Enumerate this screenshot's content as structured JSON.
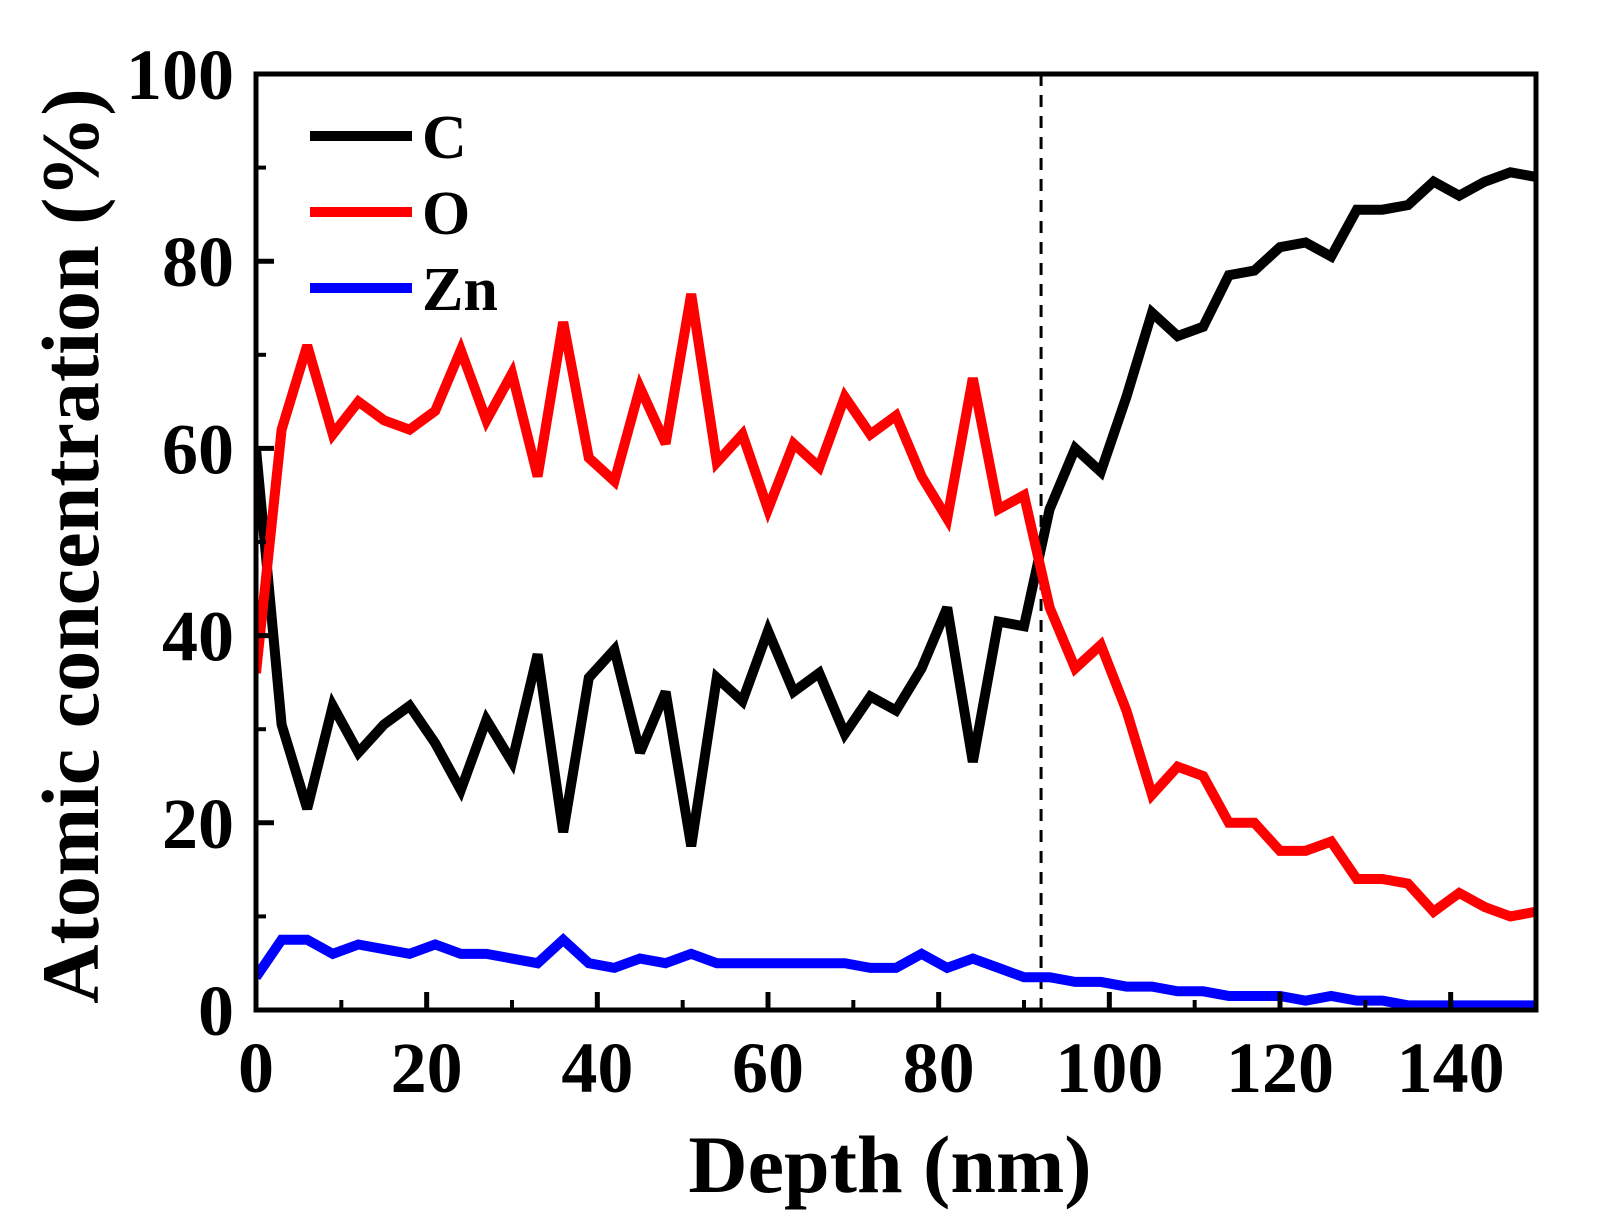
{
  "chart_data": {
    "type": "line",
    "title": "",
    "xlabel": "Depth (nm)",
    "ylabel": "Atomic concentration (%)",
    "xlim": [
      0,
      150
    ],
    "ylim": [
      0,
      100
    ],
    "xticks": [
      0,
      20,
      40,
      60,
      80,
      100,
      120,
      140
    ],
    "yticks": [
      0,
      20,
      40,
      60,
      80,
      100
    ],
    "x_minor_ticks": [
      10,
      30,
      50,
      70,
      90,
      110,
      130,
      150
    ],
    "y_minor_ticks": [
      10,
      30,
      50,
      70,
      90
    ],
    "grid": false,
    "legend_position": "top-left",
    "vline": {
      "x": 92,
      "style": "dashed",
      "color": "#000000"
    },
    "x": [
      0,
      3,
      6,
      9,
      12,
      15,
      18,
      21,
      24,
      27,
      30,
      33,
      36,
      39,
      42,
      45,
      48,
      51,
      54,
      57,
      60,
      63,
      66,
      69,
      72,
      75,
      78,
      81,
      84,
      87,
      90,
      93,
      96,
      99,
      102,
      105,
      108,
      111,
      114,
      117,
      120,
      123,
      126,
      129,
      132,
      135,
      138,
      141,
      144,
      147,
      150
    ],
    "series": [
      {
        "name": "C",
        "color": "#000000",
        "values": [
          60,
          30.5,
          21.5,
          32.5,
          27.5,
          30.5,
          32.5,
          28.5,
          23.5,
          31,
          26.5,
          38,
          19,
          35.5,
          38.5,
          27.5,
          34,
          17.5,
          35.5,
          33,
          40.5,
          34,
          36,
          29.5,
          33.5,
          32,
          36.5,
          43,
          26.5,
          41.5,
          41,
          53.5,
          60,
          57.5,
          65.5,
          74.5,
          72,
          73,
          78.5,
          79,
          81.5,
          82,
          80.5,
          85.5,
          85.5,
          86,
          88.5,
          87,
          88.5,
          89.5,
          89
        ]
      },
      {
        "name": "O",
        "color": "#ff0000",
        "values": [
          36,
          62,
          71,
          61.5,
          65,
          63,
          62,
          64,
          70.5,
          63,
          68,
          57,
          73.5,
          59,
          56.5,
          66.5,
          60.5,
          76.5,
          58.5,
          61.5,
          53.5,
          60.5,
          58,
          65.5,
          61.5,
          63.5,
          57,
          52.5,
          67.5,
          53.5,
          55,
          43,
          36.5,
          39,
          32,
          23,
          26,
          25,
          20,
          20,
          17,
          17,
          18,
          14,
          14,
          13.5,
          10.5,
          12.5,
          11,
          10,
          10.5
        ]
      },
      {
        "name": "Zn",
        "color": "#0000ff",
        "values": [
          3.5,
          7.5,
          7.5,
          6,
          7,
          6.5,
          6,
          7,
          6,
          6,
          5.5,
          5,
          7.5,
          5,
          4.5,
          5.5,
          5,
          6,
          5,
          5,
          5,
          5,
          5,
          5,
          4.5,
          4.5,
          6,
          4.5,
          5.5,
          4.5,
          3.5,
          3.5,
          3,
          3,
          2.5,
          2.5,
          2,
          2,
          1.5,
          1.5,
          1.5,
          1,
          1.5,
          1,
          1,
          0.5,
          0.5,
          0.5,
          0.5,
          0.5,
          0.5
        ]
      }
    ]
  }
}
